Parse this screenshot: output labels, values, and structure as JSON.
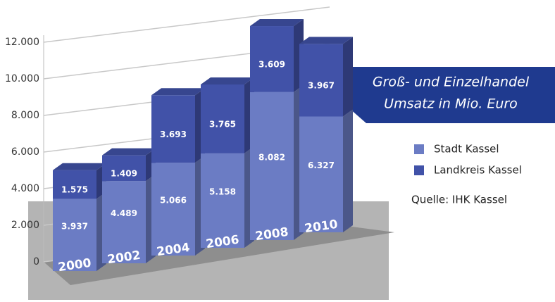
{
  "chart_data": {
    "type": "bar3d_stacked",
    "title": "Groß- und Einzelhandel",
    "subtitle": "Umsatz in Mio. Euro",
    "source": "Quelle: IHK Kassel",
    "categories": [
      "2000",
      "2002",
      "2004",
      "2006",
      "2008",
      "2010"
    ],
    "series": [
      {
        "name": "Stadt Kassel",
        "color": "#6b7cc4",
        "values": [
          3937,
          4489,
          5066,
          5158,
          8082,
          6327
        ],
        "value_labels": [
          "3.937",
          "4.489",
          "5.066",
          "5.158",
          "8.082",
          "6.327"
        ]
      },
      {
        "name": "Landkreis Kassel",
        "color": "#4152a8",
        "values": [
          1575,
          1409,
          3693,
          3765,
          3609,
          3967
        ],
        "value_labels": [
          "1.575",
          "1.409",
          "3.693",
          "3.765",
          "3.609",
          "3.967"
        ]
      }
    ],
    "ylim": [
      0,
      12000
    ],
    "yticks": [
      0,
      {
        "value": 2000,
        "label": "2.000"
      },
      {
        "value": 4000,
        "label": "4.000"
      },
      {
        "value": 6000,
        "label": "6.000"
      },
      {
        "value": 8000,
        "label": "8.000"
      },
      {
        "value": 10000,
        "label": "10.000"
      },
      {
        "value": 12000,
        "label": "12.000"
      }
    ],
    "grid": true
  }
}
